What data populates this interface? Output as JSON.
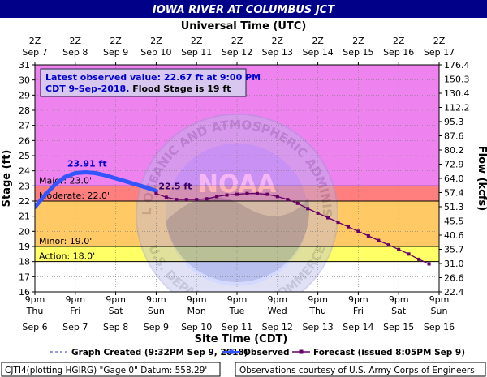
{
  "chart_data": {
    "type": "line",
    "title": "IOWA RIVER AT COLUMBUS JCT",
    "top_axis_title": "Universal Time (UTC)",
    "xlabel": "Site Time (CDT)",
    "ylabel_left": "Stage (ft)",
    "ylabel_right": "Flow (kcfs)",
    "ylim": [
      16,
      31
    ],
    "y_ticks": [
      "16",
      "17",
      "18",
      "19",
      "20",
      "21",
      "22",
      "23",
      "24",
      "25",
      "26",
      "27",
      "28",
      "29",
      "30",
      "31"
    ],
    "right_ticks": [
      "22.4",
      "26.6",
      "31.0",
      "35.7",
      "40.6",
      "45.5",
      "51.3",
      "57.4",
      "64.0",
      "72.9",
      "80.2",
      "87.6",
      "95.3",
      "112.2",
      "130.4",
      "150.3",
      "176.4"
    ],
    "x_range_hours": [
      0,
      240
    ],
    "x_ticks_bottom": [
      {
        "time": "9pm",
        "day": "Thu",
        "date": "Sep 6"
      },
      {
        "time": "9pm",
        "day": "Fri",
        "date": "Sep 7"
      },
      {
        "time": "9pm",
        "day": "Sat",
        "date": "Sep 8"
      },
      {
        "time": "9pm",
        "day": "Sun",
        "date": "Sep 9"
      },
      {
        "time": "9pm",
        "day": "Mon",
        "date": "Sep 10"
      },
      {
        "time": "9pm",
        "day": "Tue",
        "date": "Sep 11"
      },
      {
        "time": "9pm",
        "day": "Wed",
        "date": "Sep 12"
      },
      {
        "time": "9pm",
        "day": "Thu",
        "date": "Sep 13"
      },
      {
        "time": "9pm",
        "day": "Fri",
        "date": "Sep 14"
      },
      {
        "time": "9pm",
        "day": "Sat",
        "date": "Sep 15"
      },
      {
        "time": "9pm",
        "day": "Sun",
        "date": "Sep 16"
      }
    ],
    "x_ticks_top": [
      {
        "time": "2Z",
        "date": "Sep 7"
      },
      {
        "time": "2Z",
        "date": "Sep 8"
      },
      {
        "time": "2Z",
        "date": "Sep 9"
      },
      {
        "time": "2Z",
        "date": "Sep 10"
      },
      {
        "time": "2Z",
        "date": "Sep 11"
      },
      {
        "time": "2Z",
        "date": "Sep 12"
      },
      {
        "time": "2Z",
        "date": "Sep 13"
      },
      {
        "time": "2Z",
        "date": "Sep 14"
      },
      {
        "time": "2Z",
        "date": "Sep 15"
      },
      {
        "time": "2Z",
        "date": "Sep 16"
      },
      {
        "time": "2Z",
        "date": "Sep 17"
      }
    ],
    "flood_categories": [
      {
        "label": "Major: 23.0'",
        "stage": 23.0,
        "color": "#ee82ee"
      },
      {
        "label": "Moderate: 22.0'",
        "stage": 22.0,
        "color": "#ff7f7f"
      },
      {
        "label": "Minor: 19.0'",
        "stage": 19.0,
        "color": "#ffc966"
      },
      {
        "label": "Action: 18.0'",
        "stage": 18.0,
        "color": "#ffff66"
      }
    ],
    "below_action_color": "#ffffff",
    "graph_created_hours": 72.5,
    "series": [
      {
        "name": "Observed",
        "color": "#3355ff",
        "x": [
          0,
          6,
          12,
          18,
          24,
          30,
          36,
          42,
          48,
          54,
          60,
          66,
          72
        ],
        "y": [
          21.6,
          22.4,
          23.1,
          23.6,
          23.85,
          23.9,
          23.85,
          23.7,
          23.5,
          23.3,
          23.1,
          22.9,
          22.67
        ]
      },
      {
        "name": "Forecast (issued 8:05PM Sep 9)",
        "color": "#660066",
        "x": [
          72,
          78,
          84,
          90,
          96,
          102,
          108,
          114,
          120,
          126,
          132,
          138,
          144,
          150,
          156,
          162,
          168,
          174,
          180,
          186,
          192,
          198,
          204,
          210,
          216,
          222,
          228,
          234
        ],
        "y": [
          22.5,
          22.25,
          22.1,
          22.1,
          22.1,
          22.15,
          22.3,
          22.4,
          22.45,
          22.5,
          22.5,
          22.45,
          22.3,
          22.1,
          21.85,
          21.5,
          21.2,
          20.9,
          20.6,
          20.3,
          20.0,
          19.7,
          19.4,
          19.1,
          18.8,
          18.5,
          18.15,
          17.85
        ]
      }
    ],
    "annotations": [
      {
        "text": "23.91 ft",
        "x": 30,
        "y": 23.91
      },
      {
        "text": "22.5 ft",
        "x": 72,
        "y": 22.5
      }
    ],
    "info_box": {
      "line1": "Latest observed value: 22.67 ft at 9:00 PM",
      "line2a": "CDT 9-Sep-2018.",
      "line2b": " Flood Stage is 19 ft"
    },
    "legend": {
      "created": "Graph Created (9:32PM Sep 9, 2018)",
      "observed": "Observed",
      "forecast": "Forecast (issued 8:05PM Sep 9)"
    },
    "watermark": "NOAA",
    "watermark_top_text": "NATIONAL OCEANIC AND ATMOSPHERIC ADMINISTRATION",
    "watermark_bottom_text": "U.S. DEPARTMENT OF COMMERCE",
    "footer_left": "CJTI4(plotting HGIRG) \"Gage 0\" Datum: 558.29'",
    "footer_right": "Observations courtesy of U.S. Army Corps of Engineers"
  }
}
